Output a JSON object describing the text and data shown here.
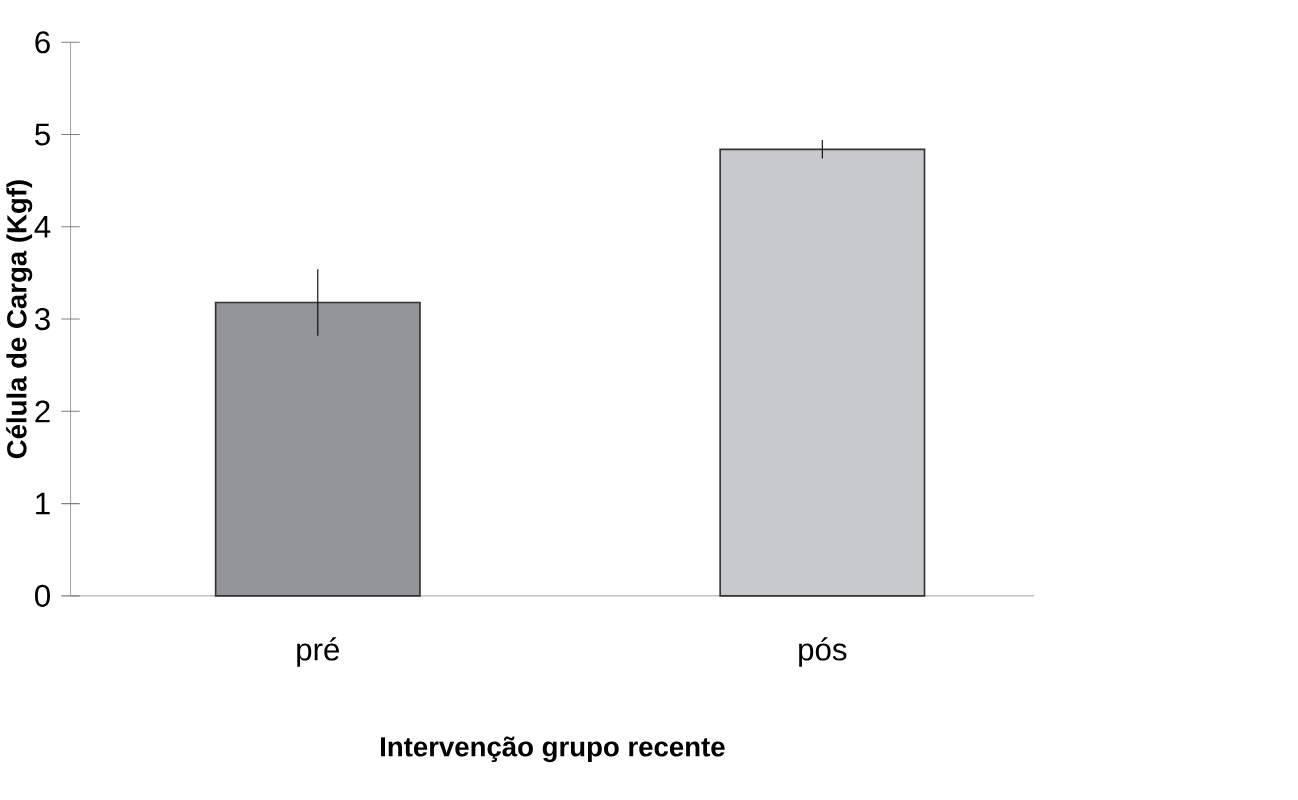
{
  "chart_data": {
    "type": "bar",
    "xlabel": "Intervenção grupo recente",
    "ylabel": "Célula de Carga (Kgf)",
    "categories": [
      "pré",
      "pós"
    ],
    "values": [
      3.18,
      4.84
    ],
    "errors": [
      0.36,
      0.1
    ],
    "colors": [
      "#939598",
      "#c8c9cb"
    ],
    "ylim": [
      0,
      6
    ],
    "yticks": [
      0,
      1,
      2,
      3,
      4,
      5,
      6
    ]
  }
}
